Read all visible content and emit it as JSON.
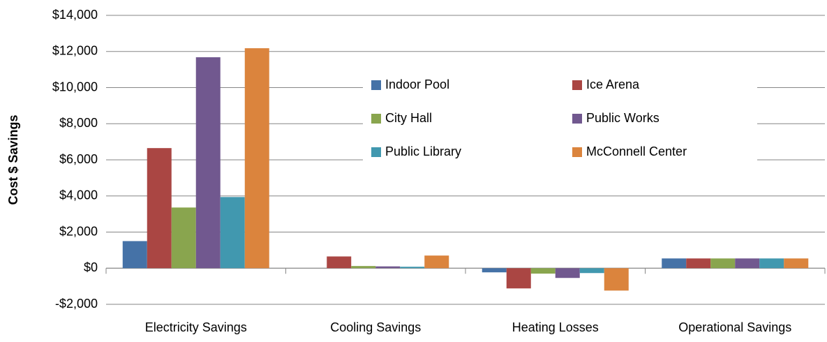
{
  "chart_data": {
    "type": "bar",
    "y_label": "Cost $ Savings",
    "categories": [
      "Electricity Savings",
      "Cooling Savings",
      "Heating Losses",
      "Operational Savings"
    ],
    "series": [
      {
        "name": "Indoor Pool",
        "color": "#4572a7",
        "values": [
          1500,
          0,
          -230,
          540
        ]
      },
      {
        "name": "Ice Arena",
        "color": "#aa4643",
        "values": [
          6650,
          650,
          -1120,
          540
        ]
      },
      {
        "name": "City Hall",
        "color": "#89a54e",
        "values": [
          3360,
          120,
          -300,
          540
        ]
      },
      {
        "name": "Public Works",
        "color": "#71588f",
        "values": [
          11680,
          100,
          -540,
          540
        ]
      },
      {
        "name": "Public Library",
        "color": "#4198af",
        "values": [
          3940,
          80,
          -270,
          540
        ]
      },
      {
        "name": "McConnell Center",
        "color": "#db843d",
        "values": [
          12180,
          700,
          -1240,
          540
        ]
      }
    ],
    "ylim": [
      -2000,
      14000
    ],
    "yticks": [
      {
        "value": -2000,
        "label": "-$2,000"
      },
      {
        "value": 0,
        "label": "$0"
      },
      {
        "value": 2000,
        "label": "$2,000"
      },
      {
        "value": 4000,
        "label": "$4,000"
      },
      {
        "value": 6000,
        "label": "$6,000"
      },
      {
        "value": 8000,
        "label": "$8,000"
      },
      {
        "value": 10000,
        "label": "$10,000"
      },
      {
        "value": 12000,
        "label": "$12,000"
      },
      {
        "value": 14000,
        "label": "$14,000"
      }
    ],
    "grid": true,
    "legend": "center"
  }
}
